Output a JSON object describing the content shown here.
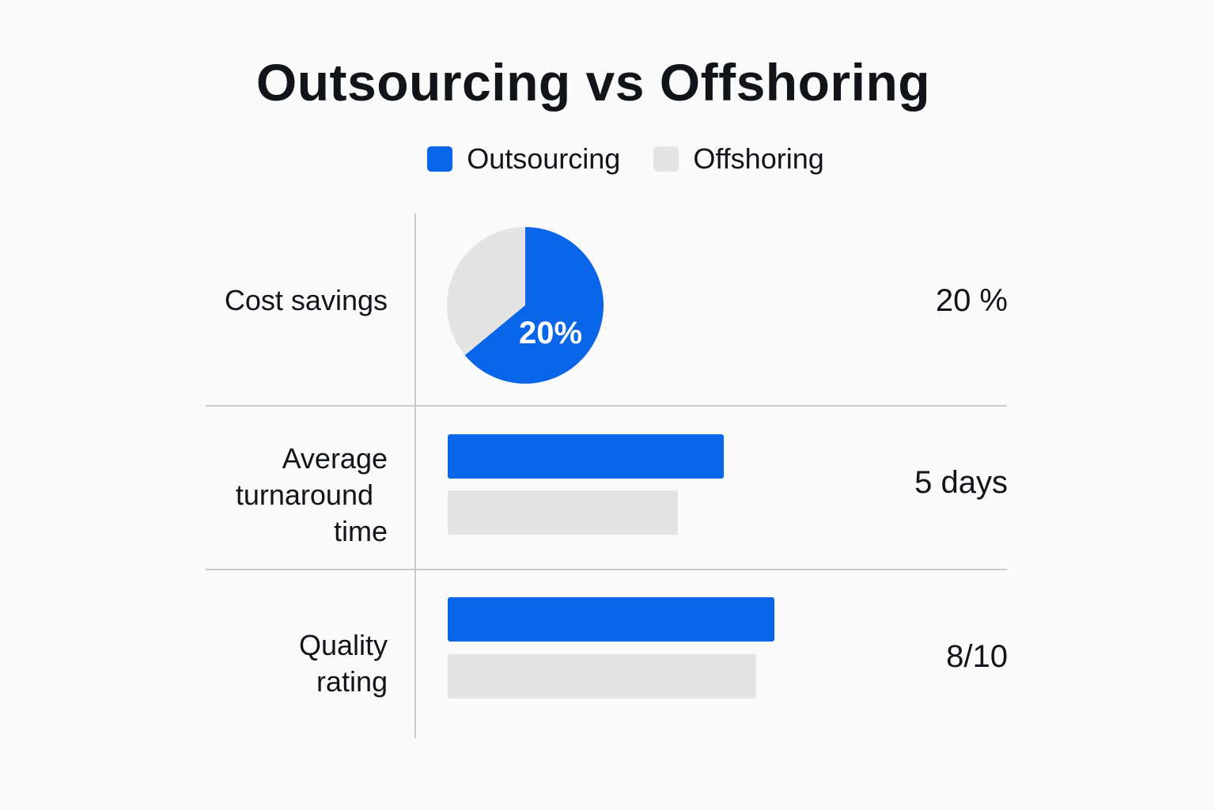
{
  "title": "Outsourcing vs Offshoring",
  "colors": {
    "outsourcing": "#0a66e8",
    "offshoring": "#e4e4e4",
    "text": "#111418",
    "divider": "#c9c9c9"
  },
  "legend": [
    {
      "label": "Outsourcing",
      "color": "#0a66e8"
    },
    {
      "label": "Offshoring",
      "color": "#e4e4e4"
    }
  ],
  "chart_data": {
    "type": "table",
    "title": "Outsourcing vs Offshoring",
    "series": [
      {
        "name": "Outsourcing"
      },
      {
        "name": "Offshoring"
      }
    ],
    "rows": [
      {
        "label": "Cost savings",
        "display_value": "20 %",
        "mark": "pie",
        "pie": {
          "outsourcing_share": 0.64,
          "offshoring_share": 0.36,
          "slice_label": "20%"
        }
      },
      {
        "label": "Average turnaround time",
        "label_lines": [
          "Average",
          "turnaround",
          "time"
        ],
        "display_value": "5 days",
        "mark": "bar",
        "bars": {
          "outsourcing": 0.6,
          "offshoring": 0.5
        }
      },
      {
        "label": "Quality rating",
        "label_lines": [
          "Quality",
          "rating"
        ],
        "display_value": "8/10",
        "mark": "bar",
        "bars": {
          "outsourcing": 0.71,
          "offshoring": 0.67
        }
      }
    ]
  }
}
